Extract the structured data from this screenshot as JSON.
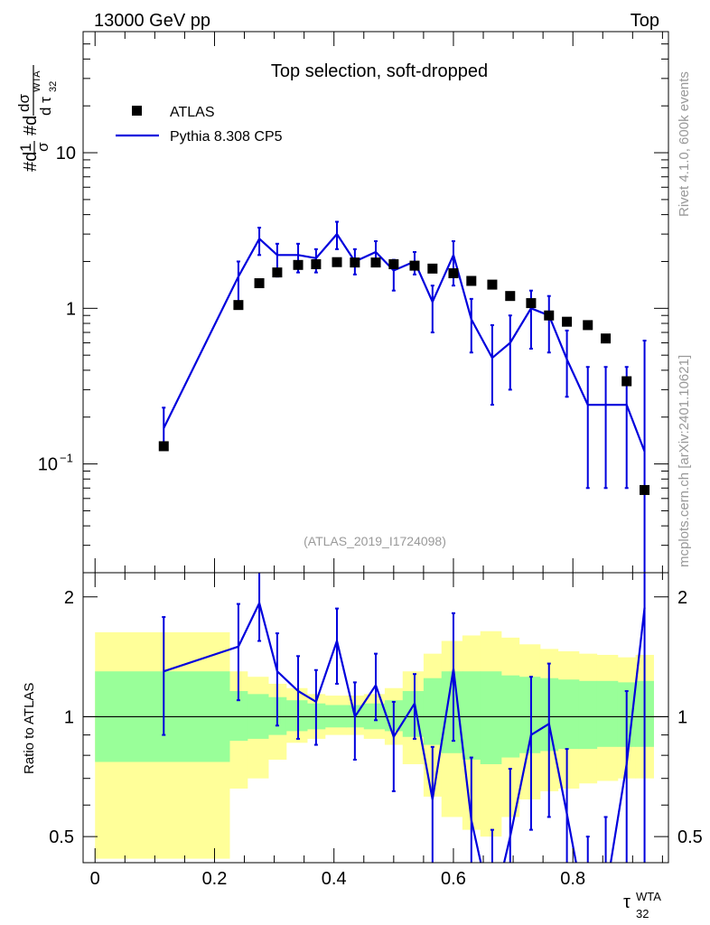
{
  "header": {
    "left": "13000 GeV pp",
    "right": "Top",
    "side_rivet": "Rivet 4.1.0,  600k events",
    "side_mcplots": "mcplots.cern.ch [arXiv:2401.10621]"
  },
  "colors": {
    "data": "#000000",
    "mc": "#0000dd",
    "band_outer": "#ffff99",
    "band_inner": "#99ff99",
    "axis": "#000000",
    "watermark": "#999999"
  },
  "chart_data": [
    {
      "type": "scatter",
      "panel": "main",
      "title": "Top selection, soft-dropped",
      "watermark": "(ATLAS_2019_I1724098)",
      "ylabel_parts": [
        "#d",
        "1",
        "σ",
        "#d",
        "dσ",
        "d τ",
        "WTA",
        "32"
      ],
      "yscale": "log",
      "ylim": [
        0.02,
        60
      ],
      "yticks": [
        {
          "value": 10,
          "label": "10"
        },
        {
          "value": 1,
          "label": "1"
        },
        {
          "value": 0.1,
          "label": "10",
          "sup": "−1"
        }
      ],
      "legend": [
        {
          "name": "ATLAS",
          "marker": "square"
        },
        {
          "name": "Pythia 8.308 CP5",
          "marker": "line"
        }
      ],
      "series": [
        {
          "name": "ATLAS",
          "x": [
            0.115,
            0.24,
            0.275,
            0.305,
            0.34,
            0.37,
            0.405,
            0.435,
            0.47,
            0.5,
            0.535,
            0.565,
            0.6,
            0.63,
            0.665,
            0.695,
            0.73,
            0.76,
            0.79,
            0.825,
            0.855,
            0.89,
            0.92
          ],
          "y": [
            0.13,
            1.05,
            1.45,
            1.7,
            1.9,
            1.92,
            1.98,
            1.97,
            1.97,
            1.92,
            1.88,
            1.8,
            1.68,
            1.5,
            1.42,
            1.2,
            1.08,
            0.9,
            0.82,
            0.78,
            0.64,
            0.34,
            0.068
          ]
        },
        {
          "name": "Pythia 8.308 CP5",
          "x": [
            0.115,
            0.24,
            0.275,
            0.305,
            0.34,
            0.37,
            0.405,
            0.435,
            0.47,
            0.5,
            0.535,
            0.565,
            0.6,
            0.63,
            0.665,
            0.695,
            0.73,
            0.76,
            0.79,
            0.825,
            0.855,
            0.89,
            0.92
          ],
          "y": [
            0.17,
            1.6,
            2.8,
            2.2,
            2.2,
            2.1,
            3.0,
            2.0,
            2.3,
            1.75,
            2.0,
            1.1,
            2.2,
            0.85,
            0.48,
            0.6,
            1.0,
            0.9,
            0.47,
            0.24,
            0.24,
            0.24,
            0.12
          ],
          "err_low": [
            0.04,
            0.6,
            0.6,
            0.6,
            0.5,
            0.4,
            0.6,
            0.35,
            0.4,
            0.45,
            0.35,
            0.4,
            0.8,
            0.33,
            0.24,
            0.3,
            0.45,
            0.38,
            0.2,
            0.17,
            0.17,
            0.17,
            0.12
          ],
          "err_high": [
            0.06,
            0.4,
            0.5,
            0.4,
            0.4,
            0.3,
            0.6,
            0.4,
            0.4,
            0.3,
            0.3,
            0.3,
            0.5,
            0.3,
            0.3,
            0.3,
            0.3,
            0.3,
            0.25,
            0.18,
            0.18,
            0.18,
            0.5
          ]
        }
      ]
    },
    {
      "type": "line",
      "panel": "ratio",
      "ylabel": "Ratio to ATLAS",
      "xlabel_main": "τ",
      "xlabel_sup": "WTA",
      "xlabel_sub": "32",
      "xlim": [
        -0.02,
        0.96
      ],
      "ylim": [
        0.43,
        2.3
      ],
      "xticks": [
        {
          "value": 0,
          "label": "0"
        },
        {
          "value": 0.2,
          "label": "0.2"
        },
        {
          "value": 0.4,
          "label": "0.4"
        },
        {
          "value": 0.6,
          "label": "0.6"
        },
        {
          "value": 0.8,
          "label": "0.8"
        }
      ],
      "yticks": [
        {
          "value": 2,
          "label": "2"
        },
        {
          "value": 1,
          "label": "1"
        },
        {
          "value": 0.5,
          "label": "0.5"
        }
      ],
      "bands": {
        "edges": [
          0.0,
          0.225,
          0.255,
          0.29,
          0.32,
          0.355,
          0.385,
          0.42,
          0.45,
          0.485,
          0.515,
          0.55,
          0.58,
          0.615,
          0.645,
          0.68,
          0.71,
          0.745,
          0.775,
          0.81,
          0.84,
          0.875,
          0.905,
          0.935
        ],
        "outer_low": [
          0.44,
          0.66,
          0.7,
          0.78,
          0.86,
          0.88,
          0.9,
          0.9,
          0.88,
          0.85,
          0.76,
          0.63,
          0.56,
          0.52,
          0.5,
          0.56,
          0.62,
          0.65,
          0.66,
          0.68,
          0.69,
          0.7,
          0.7
        ],
        "outer_high": [
          1.63,
          1.3,
          1.26,
          1.21,
          1.18,
          1.14,
          1.13,
          1.13,
          1.14,
          1.18,
          1.3,
          1.44,
          1.55,
          1.6,
          1.64,
          1.58,
          1.52,
          1.48,
          1.46,
          1.44,
          1.43,
          1.41,
          1.43
        ],
        "inner_low": [
          0.77,
          0.87,
          0.88,
          0.9,
          0.92,
          0.93,
          0.94,
          0.94,
          0.93,
          0.92,
          0.89,
          0.85,
          0.81,
          0.78,
          0.76,
          0.79,
          0.81,
          0.82,
          0.83,
          0.83,
          0.84,
          0.84,
          0.84
        ],
        "inner_high": [
          1.3,
          1.16,
          1.14,
          1.12,
          1.1,
          1.08,
          1.07,
          1.07,
          1.08,
          1.1,
          1.16,
          1.25,
          1.3,
          1.3,
          1.3,
          1.27,
          1.26,
          1.25,
          1.24,
          1.23,
          1.23,
          1.22,
          1.23
        ]
      },
      "series": [
        {
          "name": "Pythia 8.308 CP5 / ATLAS",
          "x": [
            0.115,
            0.24,
            0.275,
            0.305,
            0.34,
            0.37,
            0.405,
            0.435,
            0.47,
            0.5,
            0.535,
            0.565,
            0.6,
            0.63,
            0.665,
            0.695,
            0.73,
            0.76,
            0.79,
            0.825,
            0.855,
            0.89,
            0.92
          ],
          "y": [
            1.3,
            1.5,
            1.93,
            1.3,
            1.16,
            1.09,
            1.55,
            1.0,
            1.2,
            0.89,
            1.08,
            0.62,
            1.32,
            0.55,
            0.32,
            0.5,
            0.9,
            0.96,
            0.57,
            0.3,
            0.36,
            0.76,
            1.88
          ],
          "err_low": [
            0.4,
            0.4,
            0.38,
            0.35,
            0.28,
            0.24,
            0.34,
            0.22,
            0.22,
            0.24,
            0.2,
            0.25,
            0.45,
            0.25,
            0.2,
            0.22,
            0.38,
            0.4,
            0.25,
            0.2,
            0.2,
            0.4,
            1.85
          ],
          "err_high": [
            0.48,
            0.42,
            0.38,
            0.32,
            0.26,
            0.22,
            0.32,
            0.22,
            0.24,
            0.2,
            0.2,
            0.22,
            0.5,
            0.24,
            0.2,
            0.24,
            0.36,
            0.4,
            0.26,
            0.2,
            0.2,
            0.4,
            0.6
          ]
        }
      ]
    }
  ]
}
